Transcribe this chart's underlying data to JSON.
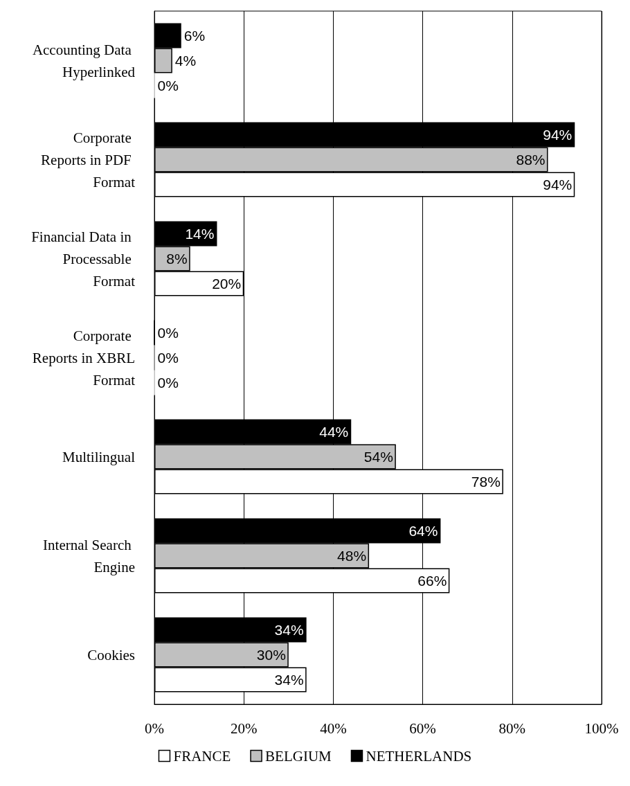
{
  "chart_data": {
    "type": "bar",
    "orientation": "horizontal",
    "categories": [
      "Accounting Data Hyperlinked",
      "Corporate Reports in PDF Format",
      "Financial Data in Processable Format",
      "Corporate Reports in XBRL Format",
      "Multilingual",
      "Internal Search Engine",
      "Cookies"
    ],
    "series": [
      {
        "name": "NETHERLANDS",
        "color": "#000000",
        "values": [
          6,
          94,
          14,
          0,
          44,
          64,
          34
        ],
        "value_labels": [
          "6%",
          "94%",
          "14%",
          "0%",
          "44%",
          "64%",
          "34%"
        ]
      },
      {
        "name": "BELGIUM",
        "color": "#c0c0c0",
        "values": [
          4,
          88,
          8,
          0,
          54,
          48,
          30
        ],
        "value_labels": [
          "4%",
          "88%",
          "8%",
          "0%",
          "54%",
          "48%",
          "30%"
        ]
      },
      {
        "name": "FRANCE",
        "color": "#ffffff",
        "values": [
          0,
          94,
          20,
          0,
          78,
          66,
          34
        ],
        "value_labels": [
          "0%",
          "94%",
          "20%",
          "0%",
          "78%",
          "66%",
          "34%"
        ]
      }
    ],
    "xlim": [
      0,
      100
    ],
    "xticks": [
      {
        "value": 0,
        "label": "0%"
      },
      {
        "value": 20,
        "label": "20%"
      },
      {
        "value": 40,
        "label": "40%"
      },
      {
        "value": 60,
        "label": "60%"
      },
      {
        "value": 80,
        "label": "80%"
      },
      {
        "value": 100,
        "label": "100%"
      }
    ],
    "grid": "x",
    "legend": "bottom"
  }
}
